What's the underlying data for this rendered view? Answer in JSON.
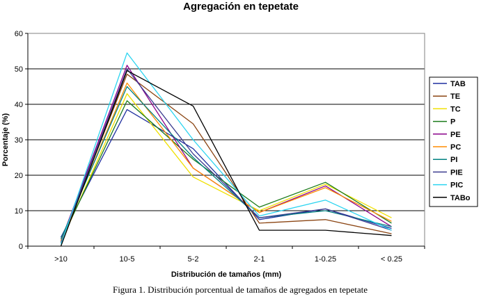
{
  "chart_data": {
    "type": "line",
    "title": "Agregación en tepetate",
    "xlabel": "Distribución de tamaños (mm)",
    "ylabel": "Porcentaje (%)",
    "categories": [
      ">10",
      "10-5",
      "5-2",
      "2-1",
      "1-0.25",
      "< 0.25"
    ],
    "ylim": [
      0,
      60
    ],
    "yticks": [
      0,
      10,
      20,
      30,
      40,
      50,
      60
    ],
    "grid": true,
    "legend_position": "right",
    "series": [
      {
        "name": "TAB",
        "color": "#1f2f9f",
        "values": [
          2.5,
          38.5,
          27.5,
          7.5,
          10.5,
          5.0
        ]
      },
      {
        "name": "TE",
        "color": "#8b4513",
        "values": [
          1.0,
          48.5,
          34.5,
          6.5,
          7.5,
          3.5
        ]
      },
      {
        "name": "TC",
        "color": "#f0e000",
        "values": [
          1.0,
          43.0,
          19.5,
          10.0,
          17.5,
          8.0
        ]
      },
      {
        "name": "P",
        "color": "#1a7a1a",
        "values": [
          1.5,
          41.0,
          24.5,
          11.0,
          18.0,
          6.5
        ]
      },
      {
        "name": "PE",
        "color": "#8a008a",
        "values": [
          1.5,
          51.0,
          22.0,
          9.5,
          17.0,
          5.5
        ]
      },
      {
        "name": "PC",
        "color": "#ff8c00",
        "values": [
          1.5,
          46.0,
          22.0,
          9.5,
          16.5,
          7.0
        ]
      },
      {
        "name": "PI",
        "color": "#008080",
        "values": [
          2.0,
          45.0,
          25.0,
          8.0,
          10.0,
          5.5
        ]
      },
      {
        "name": "PIE",
        "color": "#3b3b8f",
        "values": [
          1.0,
          50.0,
          26.0,
          8.0,
          10.5,
          4.5
        ]
      },
      {
        "name": "PIC",
        "color": "#2ad4f0",
        "values": [
          0.5,
          54.5,
          30.0,
          8.5,
          13.0,
          4.5
        ]
      },
      {
        "name": "TABo",
        "color": "#000000",
        "values": [
          0.0,
          49.5,
          39.5,
          4.5,
          4.5,
          3.0
        ]
      }
    ]
  },
  "caption": "Figura 1. Distribución porcentual de tamaños de agregados en tepetate"
}
